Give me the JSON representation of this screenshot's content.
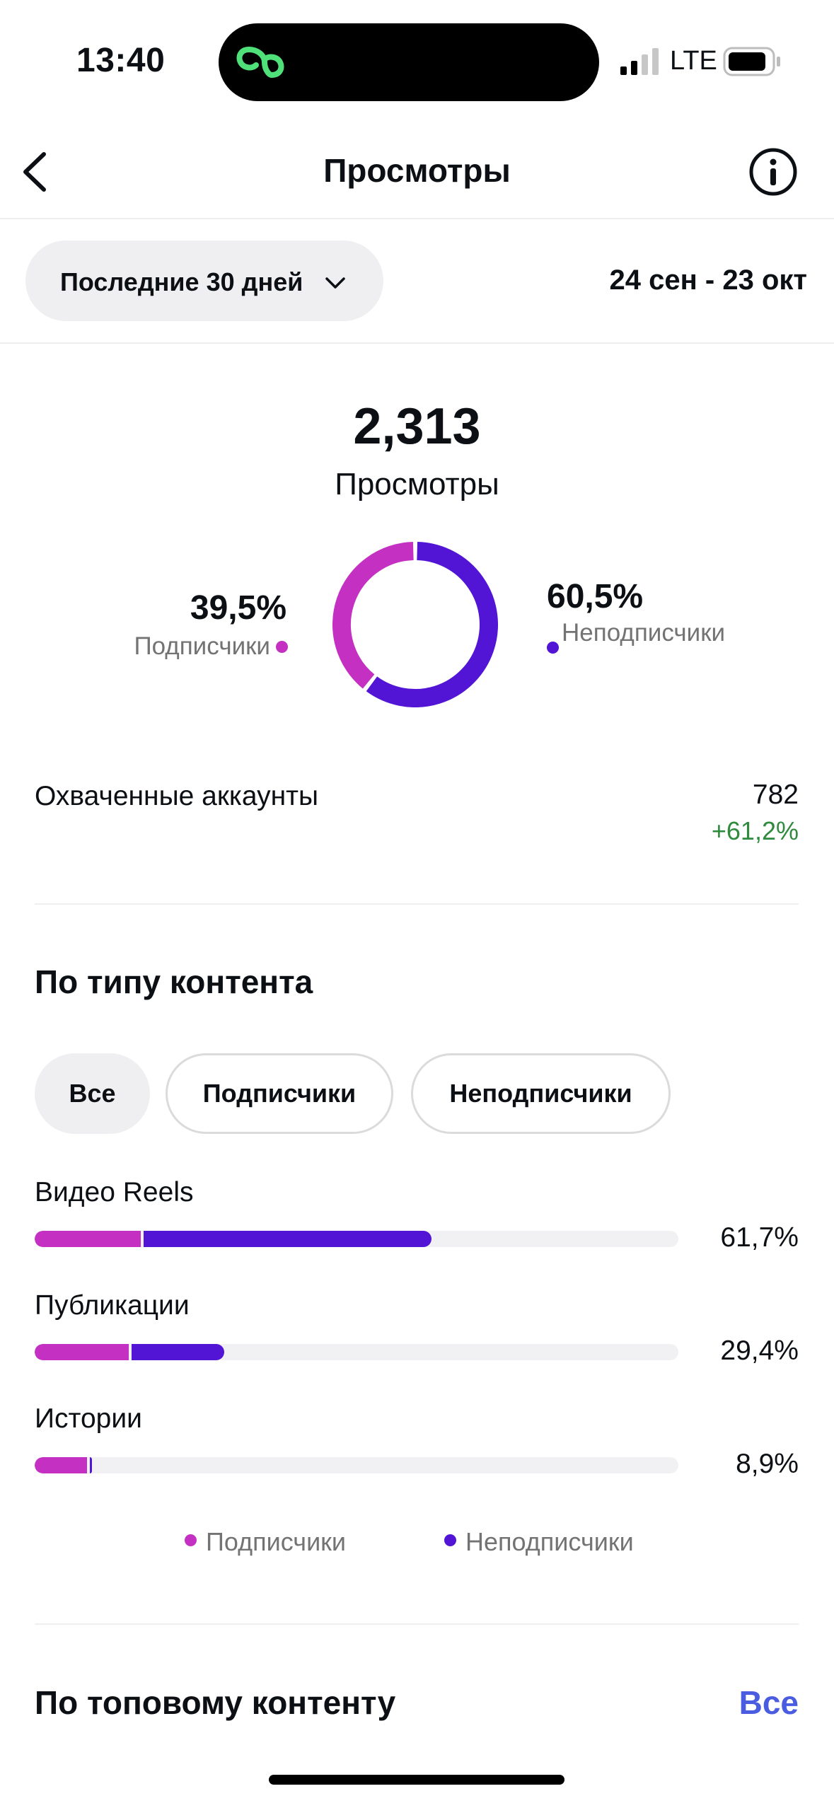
{
  "status_bar": {
    "time": "13:40",
    "network": "LTE"
  },
  "header": {
    "title": "Просмотры"
  },
  "period": {
    "label": "Последние 30 дней",
    "date_range": "24 сен - 23 окт"
  },
  "summary": {
    "total": "2,313",
    "total_label": "Просмотры",
    "followers_pct": "39,5%",
    "followers_label": "Подписчики",
    "nonfollowers_pct": "60,5%",
    "nonfollowers_label": "Неподписчики",
    "donut": {
      "followers_fraction": 0.395,
      "nonfollowers_fraction": 0.605
    }
  },
  "reached": {
    "label": "Охваченные аккаунты",
    "value": "782",
    "delta": "+61,2%"
  },
  "content_type": {
    "title": "По типу контента",
    "filters": [
      "Все",
      "Подписчики",
      "Неподписчики"
    ],
    "active_filter": "Все",
    "rows": [
      {
        "label": "Видео Reels",
        "pct": "61,7%",
        "total_fraction": 0.617,
        "followers_fraction": 0.165
      },
      {
        "label": "Публикации",
        "pct": "29,4%",
        "total_fraction": 0.294,
        "followers_fraction": 0.146
      },
      {
        "label": "Истории",
        "pct": "8,9%",
        "total_fraction": 0.089,
        "followers_fraction": 0.081
      }
    ],
    "legend": [
      "Подписчики",
      "Неподписчики"
    ]
  },
  "top_content": {
    "title": "По топовому контенту",
    "see_all": "Все"
  },
  "colors": {
    "followers": "#c431c2",
    "nonfollowers": "#5214d5",
    "positive": "#2e8b3d",
    "link": "#4a5ce0"
  }
}
